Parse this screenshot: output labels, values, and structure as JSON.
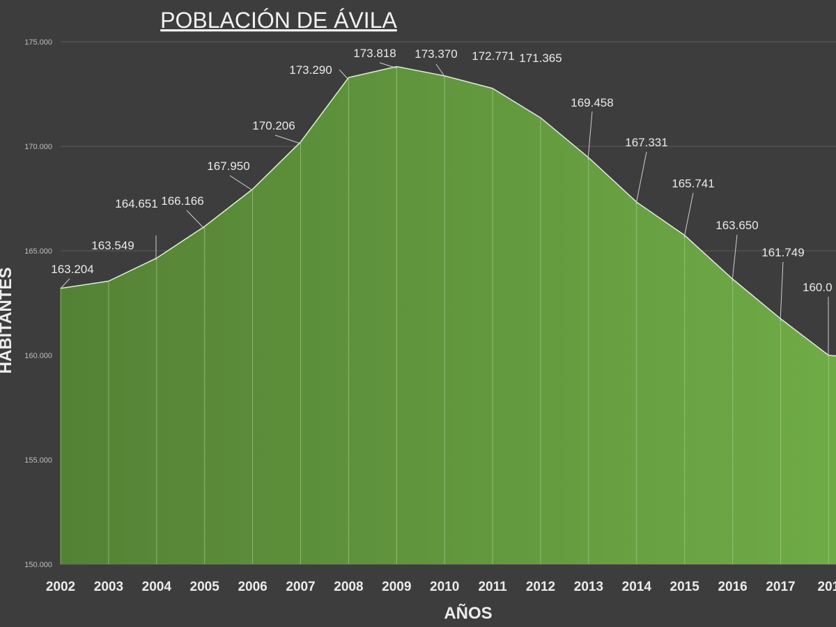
{
  "chart_data": {
    "type": "area",
    "title": "POBLACIÓN DE  ÁVILA",
    "xlabel": "AÑOS",
    "ylabel": "HABITANTES",
    "x_visible_labels": [
      "2002",
      "2003",
      "2004",
      "2005",
      "2006",
      "2007",
      "2008",
      "2009",
      "2010",
      "2011",
      "2012",
      "2013",
      "2014",
      "2015",
      "2016",
      "2017",
      "201"
    ],
    "ylim": [
      150000,
      175000
    ],
    "yticks": [
      150000,
      155000,
      160000,
      165000,
      170000,
      175000
    ],
    "ytick_labels": [
      "150.000",
      "155.000",
      "160.000",
      "165.000",
      "170.000",
      "175.000"
    ],
    "series": [
      {
        "values": [
          163204,
          163549,
          164651,
          166166,
          167950,
          170206,
          173290,
          173818,
          173370,
          172771,
          171365,
          169458,
          167331,
          165741,
          163650,
          161749,
          160000,
          159800
        ]
      }
    ],
    "data_labels": [
      "163.204",
      "163.549",
      "164.651",
      "166.166",
      "167.950",
      "170.206",
      "173.290",
      "173.818",
      "173.370",
      "172.771",
      "171.365",
      "169.458",
      "167.331",
      "165.741",
      "163.650",
      "161.749",
      "160.0"
    ],
    "grid": true,
    "legend": "none",
    "colors": {
      "background": "#3d3d3d",
      "fill_start": "#548235",
      "fill_end": "#70ad47",
      "line": "#e8e8e8",
      "gridline": "#5a5a5a",
      "dropline": "#a9c98f",
      "text": "#ececec"
    }
  }
}
